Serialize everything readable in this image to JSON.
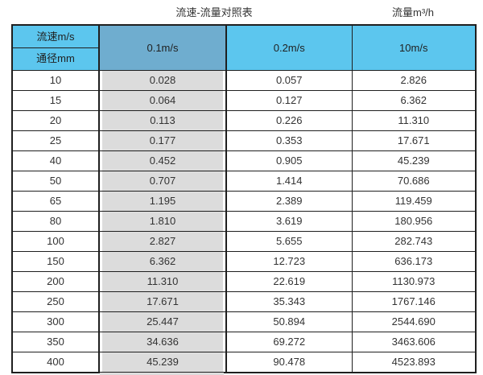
{
  "header": {
    "title": "流速-流量对照表",
    "unit_label": "流量m³/h"
  },
  "table": {
    "corner_top": "流速m/s",
    "corner_bottom": "通径mm",
    "columns": [
      "0.1m/s",
      "0.2m/s",
      "10m/s"
    ],
    "rows": [
      {
        "diameter": "10",
        "values": [
          "0.028",
          "0.057",
          "2.826"
        ]
      },
      {
        "diameter": "15",
        "values": [
          "0.064",
          "0.127",
          "6.362"
        ]
      },
      {
        "diameter": "20",
        "values": [
          "0.113",
          "0.226",
          "11.310"
        ]
      },
      {
        "diameter": "25",
        "values": [
          "0.177",
          "0.353",
          "17.671"
        ]
      },
      {
        "diameter": "40",
        "values": [
          "0.452",
          "0.905",
          "45.239"
        ]
      },
      {
        "diameter": "50",
        "values": [
          "0.707",
          "1.414",
          "70.686"
        ]
      },
      {
        "diameter": "65",
        "values": [
          "1.195",
          "2.389",
          "119.459"
        ]
      },
      {
        "diameter": "80",
        "values": [
          "1.810",
          "3.619",
          "180.956"
        ]
      },
      {
        "diameter": "100",
        "values": [
          "2.827",
          "5.655",
          "282.743"
        ]
      },
      {
        "diameter": "150",
        "values": [
          "6.362",
          "12.723",
          "636.173"
        ]
      },
      {
        "diameter": "200",
        "values": [
          "11.310",
          "22.619",
          "1130.973"
        ]
      },
      {
        "diameter": "250",
        "values": [
          "17.671",
          "35.343",
          "1767.146"
        ]
      },
      {
        "diameter": "300",
        "values": [
          "25.447",
          "50.894",
          "2544.690"
        ]
      },
      {
        "diameter": "350",
        "values": [
          "34.636",
          "69.272",
          "3463.606"
        ]
      },
      {
        "diameter": "400",
        "values": [
          "45.239",
          "90.478",
          "4523.893"
        ]
      }
    ]
  },
  "colors": {
    "header_blue": "#5cc6ee",
    "header_dark_blue": "#6fadcf",
    "gray_column": "#dcdcdc",
    "border": "#1f1f1f",
    "text": "#333333"
  },
  "chart_data": {
    "type": "table",
    "title": "流速-流量对照表",
    "value_unit_label": "流量m³/h",
    "row_axis_label": "通径mm",
    "column_axis_label": "流速m/s",
    "categories": [
      10,
      15,
      20,
      25,
      40,
      50,
      65,
      80,
      100,
      150,
      200,
      250,
      300,
      350,
      400
    ],
    "series": [
      {
        "name": "0.1m/s",
        "values": [
          0.028,
          0.064,
          0.113,
          0.177,
          0.452,
          0.707,
          1.195,
          1.81,
          2.827,
          6.362,
          11.31,
          17.671,
          25.447,
          34.636,
          45.239
        ]
      },
      {
        "name": "0.2m/s",
        "values": [
          0.057,
          0.127,
          0.226,
          0.353,
          0.905,
          1.414,
          2.389,
          3.619,
          5.655,
          12.723,
          22.619,
          35.343,
          50.894,
          69.272,
          90.478
        ]
      },
      {
        "name": "10m/s",
        "values": [
          2.826,
          6.362,
          11.31,
          17.671,
          45.239,
          70.686,
          119.459,
          180.956,
          282.743,
          636.173,
          1130.973,
          1767.146,
          2544.69,
          3463.606,
          4523.893
        ]
      }
    ]
  }
}
